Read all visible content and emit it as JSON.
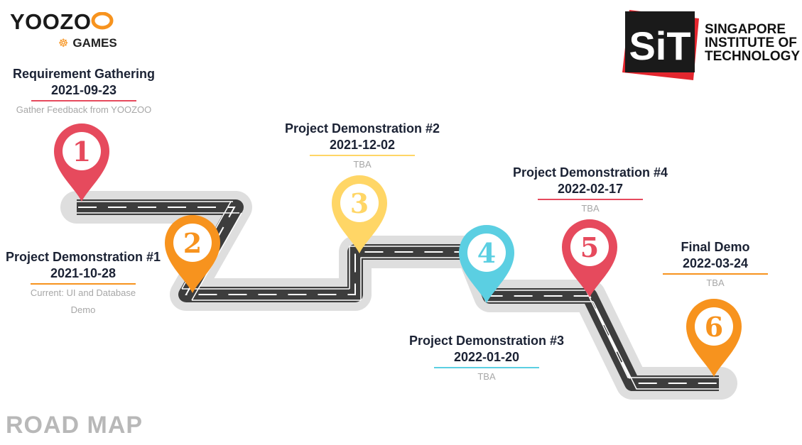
{
  "logos": {
    "yoozoo": "YOOZO",
    "yoozoo_games": "GAMES",
    "sit_mark": "SiT",
    "sit_name": [
      "SINGAPORE",
      "INSTITUTE OF",
      "TECHNOLOGY"
    ]
  },
  "page_title": "ROAD MAP",
  "colors": {
    "red": "#e64a5d",
    "orange": "#f7931e",
    "yellow": "#ffd666",
    "cyan": "#5bcfe2",
    "road": "#3d3d3d",
    "shadow": "#dedede"
  },
  "milestones": [
    {
      "number": "1",
      "title": "Requirement Gathering",
      "date": "2021-09-23",
      "desc_lines": [
        "Gather Feedback from YOOZOO"
      ],
      "color": "#e64a5d"
    },
    {
      "number": "2",
      "title": "Project Demonstration #1",
      "date": "2021-10-28",
      "desc_lines": [
        "Current: UI and Database",
        "Demo"
      ],
      "color": "#f7931e"
    },
    {
      "number": "3",
      "title": "Project Demonstration #2",
      "date": "2021-12-02",
      "desc_lines": [
        "TBA"
      ],
      "color": "#ffd666"
    },
    {
      "number": "4",
      "title": "Project Demonstration #3",
      "date": "2022-01-20",
      "desc_lines": [
        "TBA"
      ],
      "color": "#5bcfe2"
    },
    {
      "number": "5",
      "title": "Project Demonstration #4",
      "date": "2022-02-17",
      "desc_lines": [
        "TBA"
      ],
      "color": "#e64a5d"
    },
    {
      "number": "6",
      "title": "Final Demo",
      "date": "2022-03-24",
      "desc_lines": [
        "TBA"
      ],
      "color": "#f7931e"
    }
  ]
}
